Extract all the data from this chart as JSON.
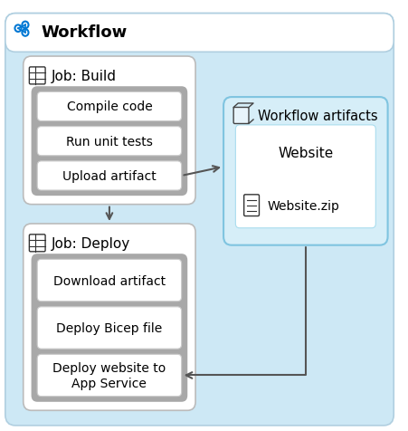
{
  "title": "Workflow",
  "bg_light_blue": "#cde8f5",
  "bg_white": "#ffffff",
  "bg_gray_inner": "#a8a8a8",
  "bg_artifact": "#d6eef8",
  "bg_artifact_inner": "#ffffff",
  "border_job": "#bbbbbb",
  "border_artifact": "#7fc4e0",
  "border_step": "#cccccc",
  "arrow_color": "#555555",
  "text_color": "#000000",
  "icon_color": "#0078d4",
  "title_fontsize": 13,
  "job_title_fontsize": 11,
  "step_fontsize": 10,
  "artifact_title_fontsize": 10.5,
  "artifact_name_fontsize": 11,
  "build_title": "Job: Build",
  "build_steps": [
    "Compile code",
    "Run unit tests",
    "Upload artifact"
  ],
  "deploy_title": "Job: Deploy",
  "deploy_steps": [
    "Download artifact",
    "Deploy Bicep file",
    "Deploy website to\nApp Service"
  ],
  "artifact_title": "Workflow artifacts",
  "artifact_name": "Website",
  "artifact_file": "Website.zip"
}
